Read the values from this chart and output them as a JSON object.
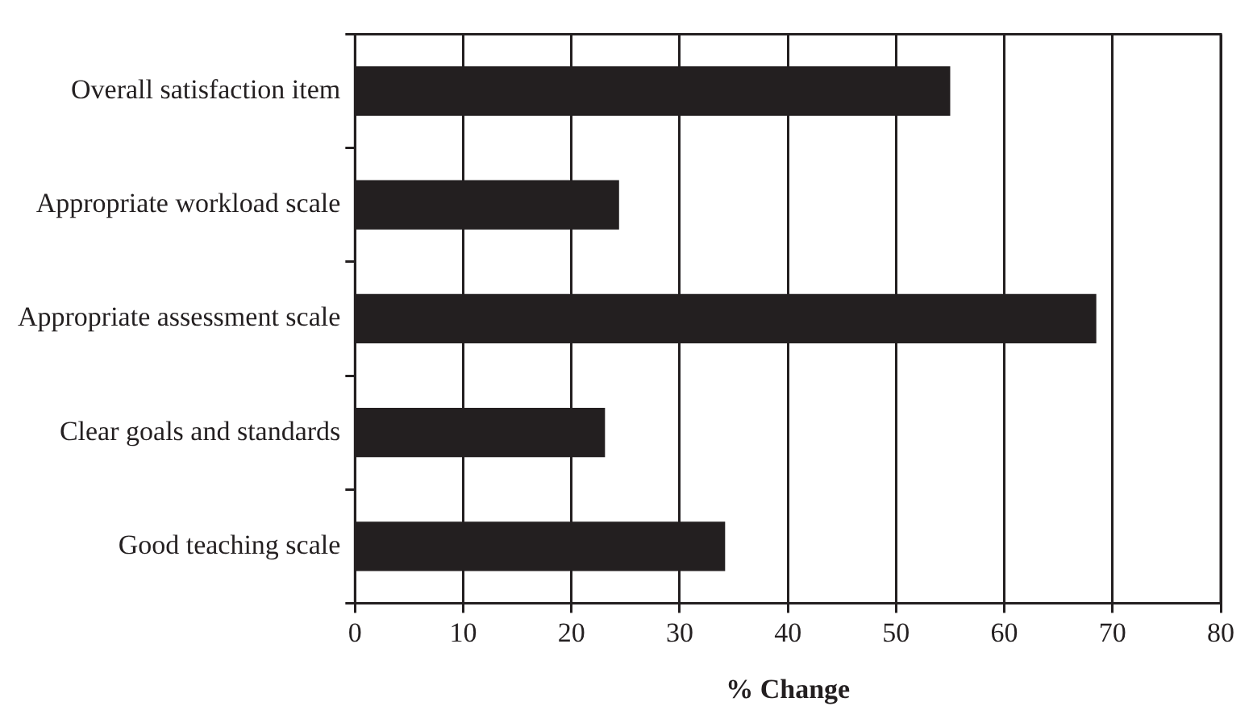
{
  "chart_data": {
    "type": "bar",
    "orientation": "horizontal",
    "categories": [
      "Overall satisfaction item",
      "Appropriate workload scale",
      "Appropriate assessment scale",
      "Clear goals and standards",
      "Good teaching scale"
    ],
    "values": [
      55,
      24.4,
      68.5,
      23.1,
      34.2
    ],
    "color": "#231f20",
    "xlabel": "% Change",
    "xlim": [
      0,
      80
    ],
    "xticks": [
      0,
      10,
      20,
      30,
      40,
      50,
      60,
      70,
      80
    ],
    "grid": "x",
    "legend": false
  }
}
